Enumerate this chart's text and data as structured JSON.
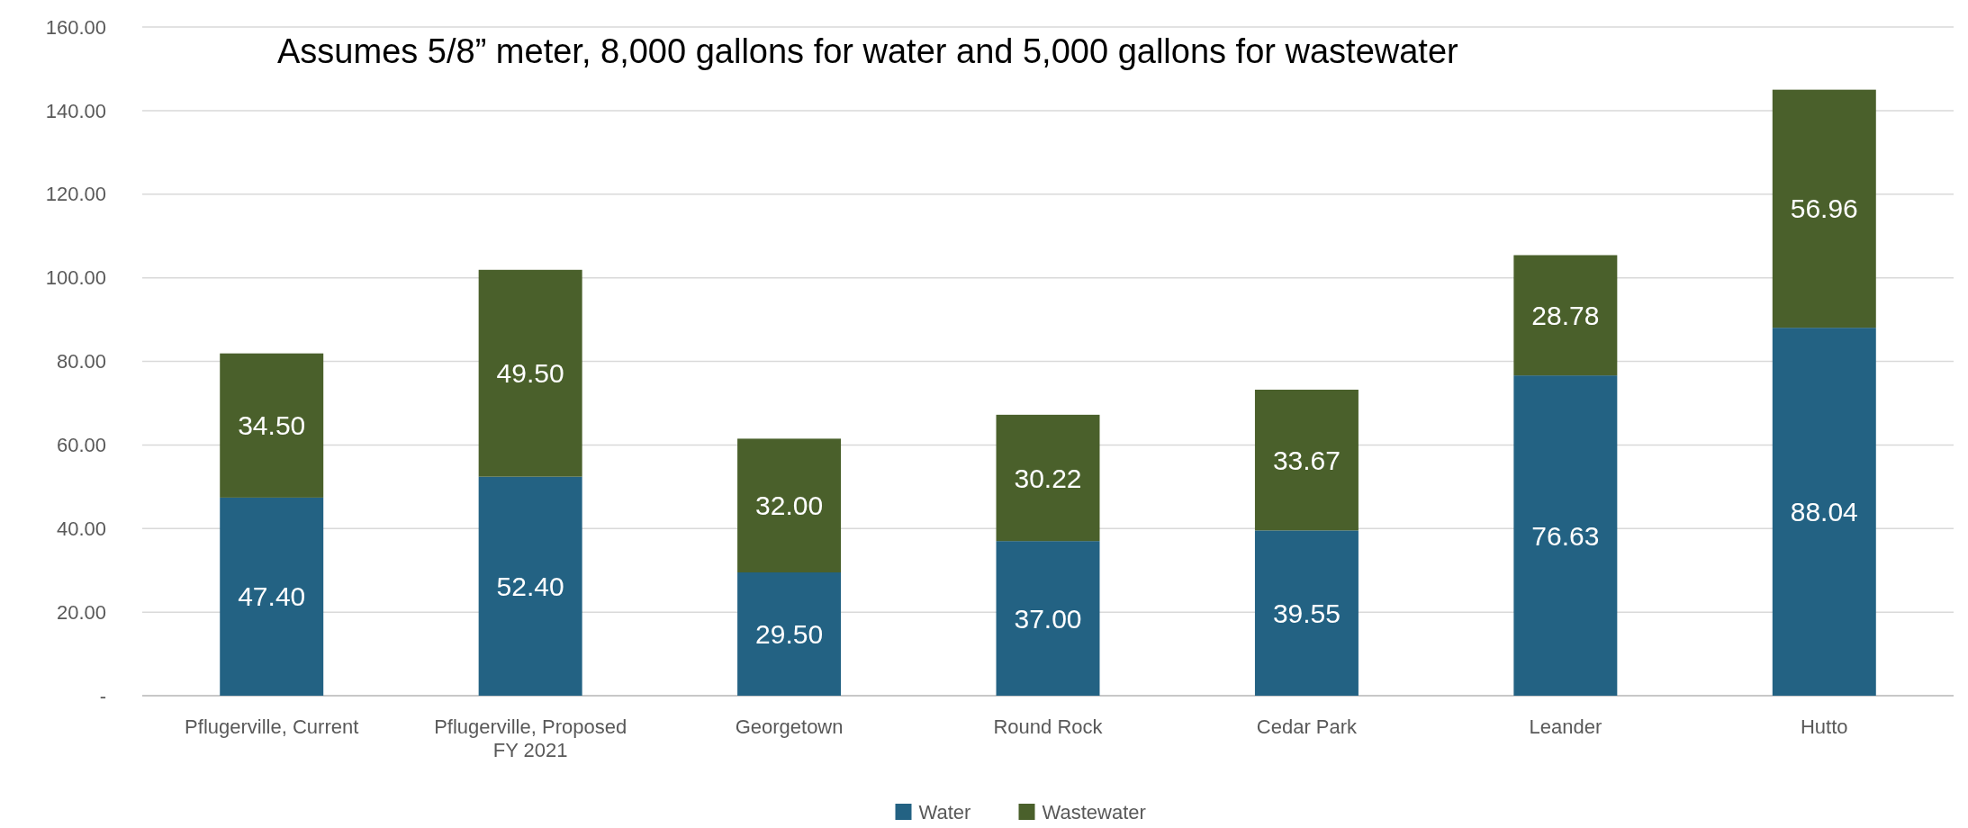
{
  "chart_data": {
    "type": "bar",
    "stacked": true,
    "title": "Assumes 5/8” meter, 8,000 gallons for water and 5,000 gallons for wastewater",
    "categories": [
      "Pflugerville, Current",
      "Pflugerville, Proposed FY 2021",
      "Georgetown",
      "Round Rock",
      "Cedar Park",
      "Leander",
      "Hutto"
    ],
    "series": [
      {
        "name": "Water",
        "color": "#236283",
        "values": [
          47.4,
          52.4,
          29.5,
          37.0,
          39.55,
          76.63,
          88.04
        ],
        "value_labels": [
          "47.40",
          "52.40",
          "29.50",
          "37.00",
          "39.55",
          "76.63",
          "88.04"
        ]
      },
      {
        "name": "Wastewater",
        "color": "#4a602b",
        "values": [
          34.5,
          49.5,
          32.0,
          30.22,
          33.67,
          28.78,
          56.96
        ],
        "value_labels": [
          "34.50",
          "49.50",
          "32.00",
          "30.22",
          "33.67",
          "28.78",
          "56.96"
        ]
      }
    ],
    "ylim": [
      0,
      160
    ],
    "yticks": [
      {
        "value": 0,
        "label": "-"
      },
      {
        "value": 20,
        "label": "20.00"
      },
      {
        "value": 40,
        "label": "40.00"
      },
      {
        "value": 60,
        "label": "60.00"
      },
      {
        "value": 80,
        "label": "80.00"
      },
      {
        "value": 100,
        "label": "100.00"
      },
      {
        "value": 120,
        "label": "120.00"
      },
      {
        "value": 140,
        "label": "140.00"
      },
      {
        "value": 160,
        "label": "160.00"
      }
    ],
    "grid": "y",
    "legend": "bottom"
  }
}
